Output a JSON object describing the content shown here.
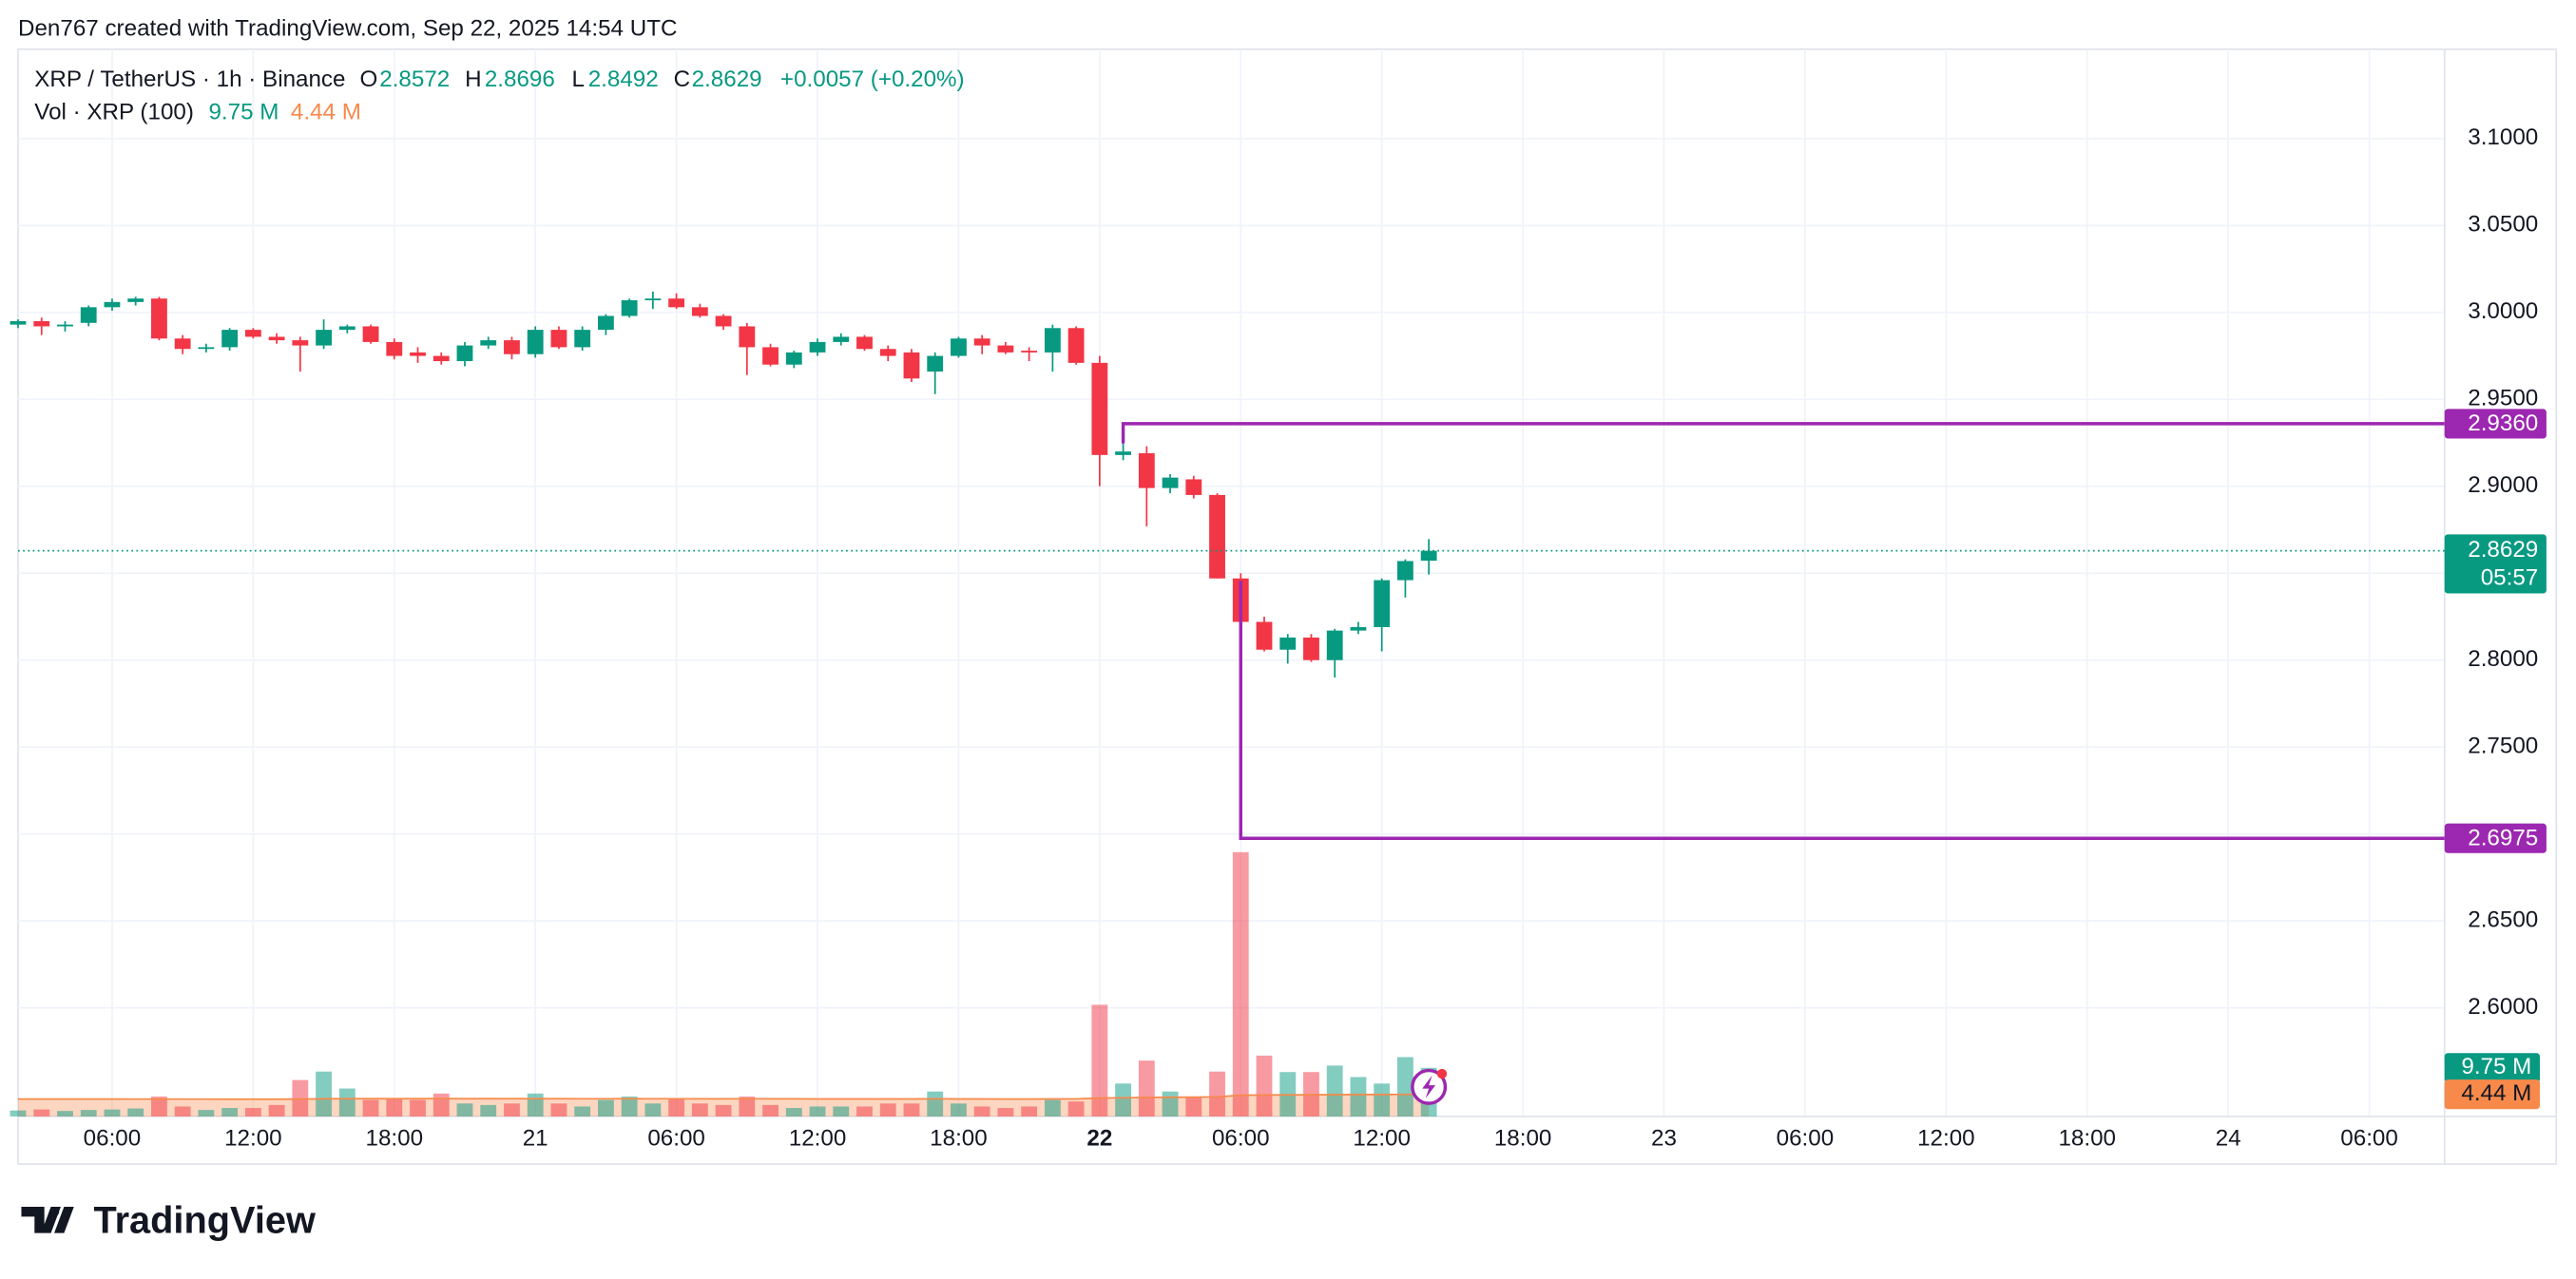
{
  "header": {
    "attribution": "Den767 created with TradingView.com, Sep 22, 2025 14:54 UTC"
  },
  "chart_data": {
    "type": "candlestick",
    "title": "XRP / TetherUS · 1h · Binance",
    "change_label": "+0.0057 (+0.20%)",
    "ohlc_letters": [
      "O",
      "H",
      "L",
      "C"
    ],
    "x": [
      2,
      3,
      4,
      5,
      6,
      7,
      8,
      9,
      10,
      11,
      12,
      13,
      14,
      15,
      16,
      17,
      18,
      19,
      20,
      21,
      22,
      23,
      24,
      25,
      26,
      27,
      28,
      29,
      30,
      31,
      32,
      33,
      34,
      35,
      36,
      37,
      38,
      39,
      40,
      41,
      42,
      43,
      44,
      45,
      46,
      47,
      48,
      49,
      50,
      51,
      52,
      53,
      54,
      55,
      56,
      57,
      58,
      59,
      60,
      61,
      62
    ],
    "open": [
      2.993,
      2.995,
      2.992,
      2.994,
      3.003,
      3.006,
      3.008,
      2.985,
      2.979,
      2.98,
      2.99,
      2.986,
      2.984,
      2.981,
      2.99,
      2.992,
      2.983,
      2.977,
      2.975,
      2.972,
      2.981,
      2.984,
      2.976,
      2.99,
      2.98,
      2.99,
      2.998,
      3.007,
      3.008,
      3.003,
      2.998,
      2.992,
      2.98,
      2.97,
      2.977,
      2.983,
      2.986,
      2.979,
      2.977,
      2.966,
      2.975,
      2.985,
      2.981,
      2.978,
      2.977,
      2.991,
      2.971,
      2.918,
      2.919,
      2.899,
      2.904,
      2.895,
      2.847,
      2.822,
      2.806,
      2.813,
      2.8,
      2.817,
      2.819,
      2.846,
      2.8572
    ],
    "high": [
      2.996,
      2.997,
      2.995,
      3.004,
      3.008,
      3.009,
      3.009,
      2.987,
      2.982,
      2.991,
      2.991,
      2.988,
      2.986,
      2.996,
      2.993,
      2.993,
      2.985,
      2.98,
      2.977,
      2.983,
      2.986,
      2.986,
      2.992,
      2.992,
      2.992,
      2.999,
      3.008,
      3.012,
      3.011,
      3.005,
      2.999,
      2.994,
      2.982,
      2.978,
      2.985,
      2.988,
      2.987,
      2.981,
      2.979,
      2.977,
      2.986,
      2.987,
      2.983,
      2.98,
      2.993,
      2.992,
      2.975,
      2.936,
      2.923,
      2.907,
      2.906,
      2.896,
      2.85,
      2.825,
      2.815,
      2.815,
      2.818,
      2.822,
      2.847,
      2.858,
      2.8696
    ],
    "low": [
      2.991,
      2.987,
      2.989,
      2.992,
      3.001,
      3.004,
      2.984,
      2.976,
      2.977,
      2.978,
      2.985,
      2.982,
      2.966,
      2.979,
      2.988,
      2.982,
      2.973,
      2.971,
      2.97,
      2.969,
      2.979,
      2.973,
      2.974,
      2.979,
      2.978,
      2.987,
      2.997,
      3.002,
      3.002,
      2.997,
      2.99,
      2.964,
      2.969,
      2.968,
      2.975,
      2.981,
      2.978,
      2.972,
      2.96,
      2.953,
      2.974,
      2.976,
      2.976,
      2.972,
      2.966,
      2.97,
      2.9,
      2.915,
      2.877,
      2.896,
      2.893,
      2.847,
      2.6975,
      2.805,
      2.798,
      2.799,
      2.79,
      2.815,
      2.805,
      2.836,
      2.8492
    ],
    "close": [
      2.995,
      2.992,
      2.993,
      3.003,
      3.006,
      3.008,
      2.985,
      2.979,
      2.98,
      2.99,
      2.986,
      2.984,
      2.981,
      2.99,
      2.992,
      2.983,
      2.975,
      2.975,
      2.972,
      2.981,
      2.984,
      2.976,
      2.99,
      2.98,
      2.99,
      2.998,
      3.007,
      3.008,
      3.003,
      2.998,
      2.992,
      2.98,
      2.97,
      2.977,
      2.983,
      2.986,
      2.979,
      2.975,
      2.962,
      2.975,
      2.985,
      2.981,
      2.977,
      2.977,
      2.991,
      2.971,
      2.918,
      2.92,
      2.899,
      2.905,
      2.895,
      2.847,
      2.822,
      2.806,
      2.813,
      2.8,
      2.817,
      2.819,
      2.846,
      2.857,
      2.8629
    ],
    "up_color": "#089981",
    "down_color": "#f23645",
    "xlim": [
      2,
      105.2
    ],
    "xticks": [
      {
        "value": 6,
        "label": "06:00"
      },
      {
        "value": 12,
        "label": "12:00"
      },
      {
        "value": 18,
        "label": "18:00"
      },
      {
        "value": 24,
        "label": "21"
      },
      {
        "value": 30,
        "label": "06:00"
      },
      {
        "value": 36,
        "label": "12:00"
      },
      {
        "value": 42,
        "label": "18:00"
      },
      {
        "value": 48,
        "label": "22"
      },
      {
        "value": 54,
        "label": "06:00"
      },
      {
        "value": 60,
        "label": "12:00"
      },
      {
        "value": 66,
        "label": "18:00"
      },
      {
        "value": 72,
        "label": "23"
      },
      {
        "value": 78,
        "label": "06:00"
      },
      {
        "value": 84,
        "label": "12:00"
      },
      {
        "value": 90,
        "label": "18:00"
      },
      {
        "value": 96,
        "label": "24"
      },
      {
        "value": 102,
        "label": "06:00"
      }
    ],
    "bold_xtick": 48,
    "ylim": [
      2.5375,
      3.1514
    ],
    "yticks": [
      {
        "value": 2.6,
        "label": "2.6000"
      },
      {
        "value": 2.65,
        "label": "2.6500"
      },
      {
        "value": 2.7,
        "label": "2.7000"
      },
      {
        "value": 2.75,
        "label": "2.7500"
      },
      {
        "value": 2.8,
        "label": "2.8000"
      },
      {
        "value": 2.85,
        "label": "2.8500"
      },
      {
        "value": 2.9,
        "label": "2.9000"
      },
      {
        "value": 2.95,
        "label": "2.9500"
      },
      {
        "value": 3.0,
        "label": "3.0000"
      },
      {
        "value": 3.05,
        "label": "3.0500"
      },
      {
        "value": 3.1,
        "label": "3.1000"
      }
    ],
    "grid": true,
    "countdown": "05:57",
    "levels": [
      {
        "value": 2.936,
        "label": "2.9360",
        "start": 49,
        "color": "#9c27b0"
      },
      {
        "value": 2.6975,
        "label": "2.6975",
        "start": 54,
        "color": "#9c27b0"
      }
    ],
    "volume": {
      "title": "Vol · XRP (100)",
      "ylim": [
        0,
        214
      ],
      "values": [
        1.2,
        1.4,
        1.1,
        1.3,
        1.4,
        1.6,
        4.0,
        2.0,
        1.3,
        1.7,
        1.7,
        2.3,
        7.3,
        9.0,
        5.6,
        3.3,
        3.6,
        3.3,
        4.6,
        2.6,
        2.3,
        2.6,
        4.6,
        2.6,
        2.0,
        3.3,
        4.0,
        2.6,
        3.6,
        2.6,
        2.3,
        4.0,
        2.3,
        1.7,
        2.0,
        2.0,
        2.0,
        2.6,
        2.6,
        5.0,
        2.6,
        2.0,
        1.7,
        2.0,
        3.3,
        3.0,
        22.4,
        6.6,
        11.2,
        5.0,
        4.0,
        9.0,
        53.0,
        12.2,
        8.9,
        8.9,
        10.2,
        7.9,
        6.6,
        11.9,
        9.75
      ],
      "last_label": "9.75 M",
      "ma_values": [
        3.5,
        3.5,
        3.49,
        3.49,
        3.49,
        3.48,
        3.49,
        3.48,
        3.48,
        3.47,
        3.47,
        3.47,
        3.5,
        3.54,
        3.56,
        3.56,
        3.57,
        3.57,
        3.58,
        3.57,
        3.57,
        3.56,
        3.57,
        3.56,
        3.55,
        3.55,
        3.56,
        3.55,
        3.55,
        3.54,
        3.54,
        3.55,
        3.54,
        3.53,
        3.52,
        3.52,
        3.51,
        3.51,
        3.51,
        3.53,
        3.52,
        3.51,
        3.5,
        3.5,
        3.51,
        3.51,
        3.7,
        3.74,
        3.82,
        3.85,
        3.87,
        3.93,
        4.25,
        4.3,
        4.33,
        4.35,
        4.38,
        4.39,
        4.4,
        4.43,
        4.44
      ],
      "ma_label": "4.44 M",
      "ma_color": "#f7894a"
    }
  },
  "footer": {
    "brand": "TradingView"
  }
}
